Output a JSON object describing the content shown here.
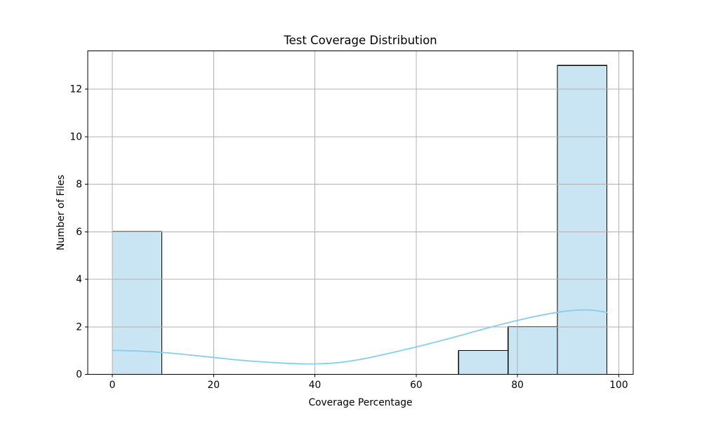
{
  "chart_data": {
    "type": "bar",
    "subtype": "histogram-with-kde",
    "title": "Test Coverage Distribution",
    "xlabel": "Coverage Percentage",
    "ylabel": "Number of Files",
    "xlim": [
      -4.85,
      102.85
    ],
    "ylim": [
      0,
      13.61
    ],
    "x_ticks": [
      0,
      20,
      40,
      60,
      80,
      100
    ],
    "y_ticks": [
      0,
      2,
      4,
      6,
      8,
      10,
      12
    ],
    "grid": true,
    "legend": false,
    "bars": [
      {
        "x0": 0.0,
        "x1": 9.77,
        "count": 6
      },
      {
        "x0": 68.36,
        "x1": 78.13,
        "count": 1
      },
      {
        "x0": 78.13,
        "x1": 87.9,
        "count": 2
      },
      {
        "x0": 87.9,
        "x1": 97.66,
        "count": 13
      }
    ],
    "kde_curve": {
      "x": [
        0,
        5,
        10,
        15,
        20,
        25,
        30,
        35,
        40,
        45,
        50,
        55,
        60,
        65,
        70,
        75,
        80,
        85,
        90,
        94,
        97.7
      ],
      "y": [
        1.01,
        0.98,
        0.92,
        0.82,
        0.71,
        0.6,
        0.52,
        0.46,
        0.44,
        0.5,
        0.67,
        0.9,
        1.15,
        1.42,
        1.71,
        2.0,
        2.27,
        2.5,
        2.67,
        2.71,
        2.61
      ]
    },
    "colors": {
      "bar_fill": "#c9e5f3",
      "bar_edge": "#000000",
      "kde_line": "#87ceeb",
      "grid": "#b0b0b0",
      "axis": "#000000",
      "text": "#000000",
      "background": "#ffffff"
    }
  }
}
